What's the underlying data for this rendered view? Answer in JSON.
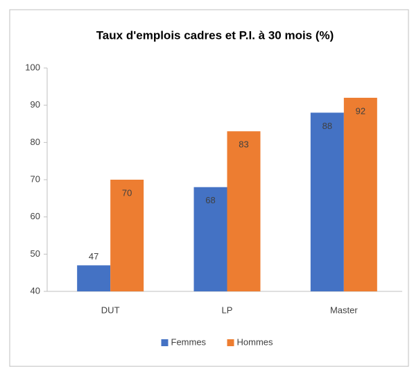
{
  "chart_data": {
    "type": "bar",
    "title": "Taux d'emplois cadres et P.I. à 30 mois (%)",
    "categories": [
      "DUT",
      "LP",
      "Master"
    ],
    "series": [
      {
        "name": "Femmes",
        "color": "#4472c4",
        "values": [
          47,
          68,
          88
        ]
      },
      {
        "name": "Hommes",
        "color": "#ed7d31",
        "values": [
          70,
          83,
          92
        ]
      }
    ],
    "ylim": [
      40,
      100
    ],
    "yticks": [
      40,
      50,
      60,
      70,
      80,
      90,
      100
    ],
    "grid": false,
    "legend": "bottom"
  }
}
